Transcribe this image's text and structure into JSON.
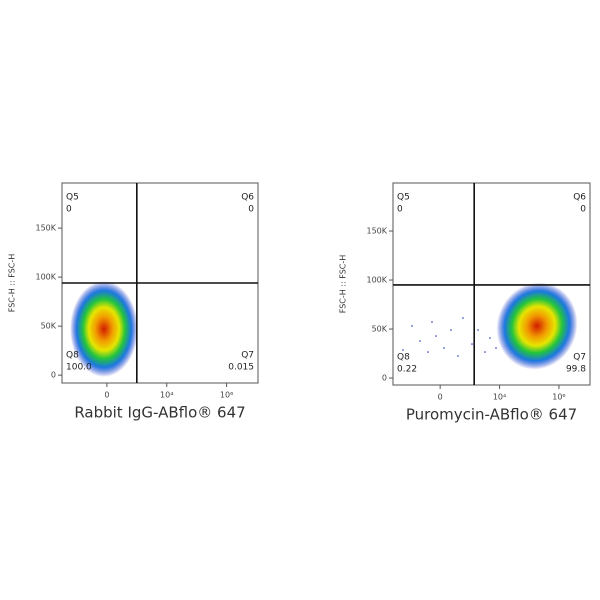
{
  "chart_data": [
    {
      "type": "scatter",
      "x_label": "Rabbit IgG-ABflo® 647",
      "y_label": "FSC-H :: FSC-H",
      "xlim": [
        -3160,
        11200000
      ],
      "ylim": [
        -8000,
        196000
      ],
      "xscale": "biexponential",
      "xticks": [
        0,
        {
          "value": 10000,
          "label": "10⁴"
        },
        {
          "value": 1000000,
          "label": "10⁶"
        }
      ],
      "yticks": [
        0,
        {
          "value": 50000,
          "label": "50K"
        },
        {
          "value": 100000,
          "label": "100K"
        },
        {
          "value": 150000,
          "label": "150K"
        }
      ],
      "gates": {
        "x": 1000,
        "y": 94000
      },
      "quadrants": {
        "names": [
          "Q5",
          "Q6",
          "Q7",
          "Q8"
        ],
        "values": [
          0,
          0,
          0.015,
          100
        ],
        "value_labels": [
          "0",
          "0",
          "0.015",
          "100.0"
        ]
      }
    },
    {
      "type": "scatter",
      "x_label": "Puromycin-ABflo® 647",
      "y_label": "FSC-H :: FSC-H",
      "xlim": [
        -3870,
        11100000
      ],
      "ylim": [
        -7100,
        199000
      ],
      "xscale": "biexponential",
      "xticks": [
        0,
        {
          "value": 10000,
          "label": "10⁴"
        },
        {
          "value": 1000000,
          "label": "10⁶"
        }
      ],
      "yticks": [
        0,
        {
          "value": 50000,
          "label": "50K"
        },
        {
          "value": 100000,
          "label": "100K"
        },
        {
          "value": 150000,
          "label": "150K"
        }
      ],
      "gates": {
        "x": 1400,
        "y": 95000
      },
      "quadrants": {
        "names": [
          "Q5",
          "Q6",
          "Q7",
          "Q8"
        ],
        "values": [
          0,
          0,
          99.8,
          0.22
        ],
        "value_labels": [
          "0",
          "0",
          "99.8",
          "0.22"
        ]
      }
    }
  ]
}
